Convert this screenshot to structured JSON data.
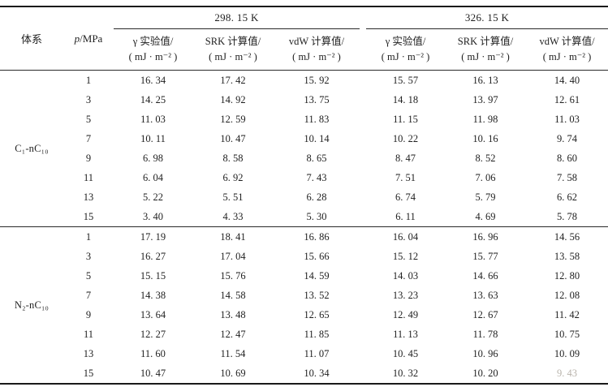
{
  "header": {
    "system": "体系",
    "pressure_p": "p",
    "pressure_rest": "/MPa",
    "temp1": "298. 15 K",
    "temp2": "326. 15 K",
    "value_cols": [
      {
        "name": "γ 实验值/",
        "unit": "( mJ · m⁻² )"
      },
      {
        "name": "SRK 计算值/",
        "unit": "( mJ · m⁻² )"
      },
      {
        "name": "vdW 计算值/",
        "unit": "( mJ · m⁻² )"
      }
    ]
  },
  "table": {
    "blocks": [
      {
        "system": "C₁-nC₁₀",
        "rows": [
          {
            "p": "1",
            "values": [
              "16. 34",
              "17. 42",
              "15. 92",
              "15. 57",
              "16. 13",
              "14. 40"
            ]
          },
          {
            "p": "3",
            "values": [
              "14. 25",
              "14. 92",
              "13. 75",
              "14. 18",
              "13. 97",
              "12. 61"
            ]
          },
          {
            "p": "5",
            "values": [
              "11. 03",
              "12. 59",
              "11. 83",
              "11. 15",
              "11. 98",
              "11. 03"
            ]
          },
          {
            "p": "7",
            "values": [
              "10. 11",
              "10. 47",
              "10. 14",
              "10. 22",
              "10. 16",
              "9. 74"
            ]
          },
          {
            "p": "9",
            "values": [
              "6. 98",
              "8. 58",
              "8. 65",
              "8. 47",
              "8. 52",
              "8. 60"
            ]
          },
          {
            "p": "11",
            "values": [
              "6. 04",
              "6. 92",
              "7. 43",
              "7. 51",
              "7. 06",
              "7. 58"
            ]
          },
          {
            "p": "13",
            "values": [
              "5. 22",
              "5. 51",
              "6. 28",
              "6. 74",
              "5. 79",
              "6. 62"
            ]
          },
          {
            "p": "15",
            "values": [
              "3. 40",
              "4. 33",
              "5. 30",
              "6. 11",
              "4. 69",
              "5. 78"
            ]
          }
        ]
      },
      {
        "system": "N₂-nC₁₀",
        "rows": [
          {
            "p": "1",
            "values": [
              "17. 19",
              "18. 41",
              "16. 86",
              "16. 04",
              "16. 96",
              "14. 56"
            ]
          },
          {
            "p": "3",
            "values": [
              "16. 27",
              "17. 04",
              "15. 66",
              "15. 12",
              "15. 77",
              "13. 58"
            ]
          },
          {
            "p": "5",
            "values": [
              "15. 15",
              "15. 76",
              "14. 59",
              "14. 03",
              "14. 66",
              "12. 80"
            ]
          },
          {
            "p": "7",
            "values": [
              "14. 38",
              "14. 58",
              "13. 52",
              "13. 23",
              "13. 63",
              "12. 08"
            ]
          },
          {
            "p": "9",
            "values": [
              "13. 64",
              "13. 48",
              "12. 65",
              "12. 49",
              "12. 67",
              "11. 42"
            ]
          },
          {
            "p": "11",
            "values": [
              "12. 27",
              "12. 47",
              "11. 85",
              "11. 13",
              "11. 78",
              "10. 75"
            ]
          },
          {
            "p": "13",
            "values": [
              "11. 60",
              "11. 54",
              "11. 07",
              "10. 45",
              "10. 96",
              "10. 09"
            ]
          },
          {
            "p": "15",
            "values": [
              "10. 47",
              "10. 69",
              "10. 34",
              "10. 32",
              "10. 20",
              "9. 43"
            ]
          }
        ]
      }
    ],
    "faded_cell": {
      "block": 1,
      "row": 7,
      "col": 5
    }
  },
  "colors": {
    "rule": "#1a1a1a",
    "text": "#1f1f1f",
    "faded_text": "#b9b4ac",
    "background": "#ffffff"
  }
}
